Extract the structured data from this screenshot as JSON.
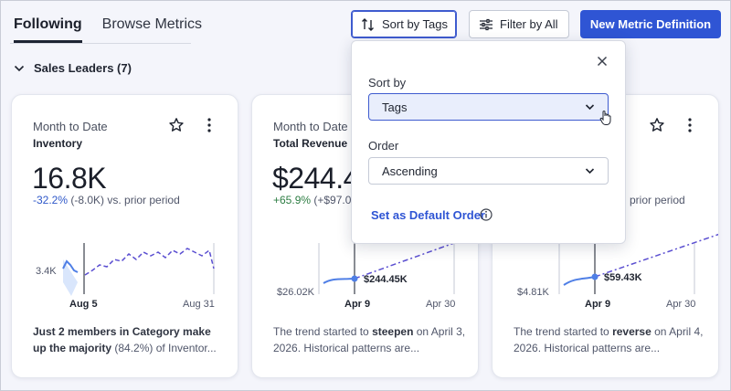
{
  "tabs": [
    {
      "label": "Following",
      "active": true
    },
    {
      "label": "Browse Metrics",
      "active": false
    }
  ],
  "toolbar": {
    "sort_label": "Sort by Tags",
    "filter_label": "Filter by All",
    "new_metric_label": "New Metric Definition"
  },
  "section": {
    "title": "Sales Leaders (7)"
  },
  "cards": [
    {
      "period": "Month to Date",
      "name": "Inventory",
      "value": "16.8K",
      "change_pct": "-32.2%",
      "change_rest": " (-8.0K) vs. prior period",
      "chart": {
        "y_label": "3.4K",
        "start_label": "Aug 5",
        "end_label": "Aug 31"
      },
      "insight_bold": "Just 2 members in Category make up the majority",
      "insight_rest": " (84.2%) of Inventor..."
    },
    {
      "period": "Month to Date -",
      "name": "Total Revenue",
      "value": "$244.4",
      "change_pct": "+65.9%",
      "change_rest": " (+$97.0",
      "chart": {
        "y_label": "$26.02K",
        "point_label": "$244.45K",
        "start_label": "Apr 9",
        "end_label": "Apr 30"
      },
      "insight_pre": "The trend started to ",
      "insight_bold": "steepen",
      "insight_rest": " on April 3, 2026. Historical patterns are..."
    },
    {
      "change_rest": "prior period",
      "chart": {
        "y_label": "$4.81K",
        "point_label": "$59.43K",
        "start_label": "Apr 9",
        "end_label": "Apr 30"
      },
      "insight_pre": "The trend started to ",
      "insight_bold": "reverse",
      "insight_rest": " on April 4, 2026. Historical patterns are..."
    }
  ],
  "popover": {
    "sort_by_label": "Sort by",
    "sort_by_value": "Tags",
    "order_label": "Order",
    "order_value": "Ascending",
    "default_link": "Set as Default Order"
  },
  "colors": {
    "accent": "#2f55d4",
    "negative": "#2f58c9",
    "positive": "#2d7d43",
    "trend_line": "#5b4fd1"
  }
}
